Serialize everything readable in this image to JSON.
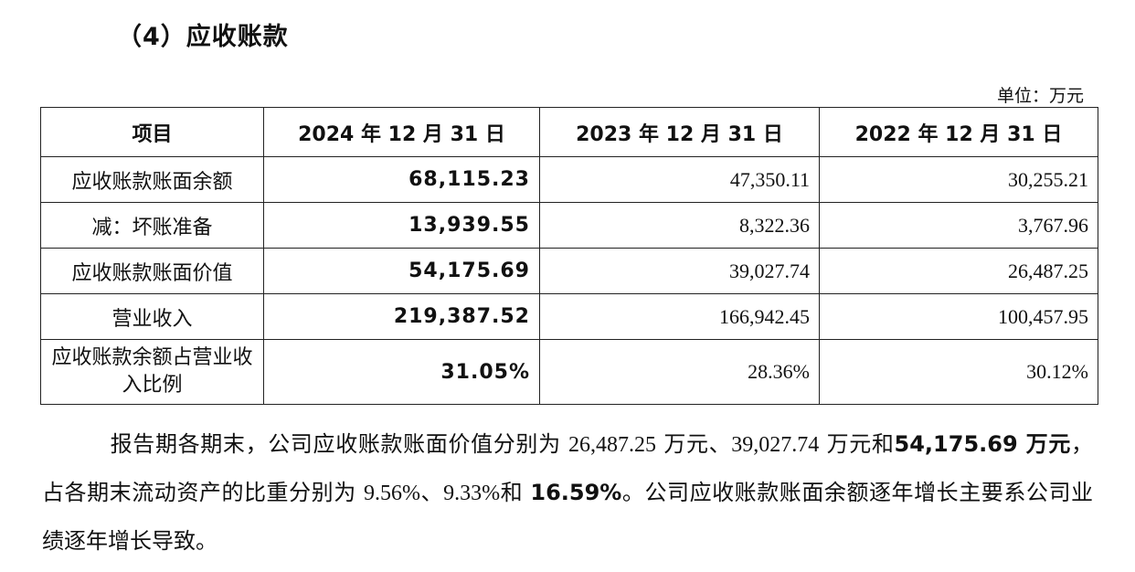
{
  "section_title": "（4）应收账款",
  "unit_label": "单位：万元",
  "table": {
    "headers": [
      "项目",
      "2024 年 12 月 31 日",
      "2023 年 12 月 31 日",
      "2022 年 12 月 31 日"
    ],
    "rows": [
      {
        "label": "应收账款账面余额",
        "v2024": "68,115.23",
        "v2023": "47,350.11",
        "v2022": "30,255.21"
      },
      {
        "label": "减：坏账准备",
        "v2024": "13,939.55",
        "v2023": "8,322.36",
        "v2022": "3,767.96"
      },
      {
        "label": "应收账款账面价值",
        "v2024": "54,175.69",
        "v2023": "39,027.74",
        "v2022": "26,487.25"
      },
      {
        "label": "营业收入",
        "v2024": "219,387.52",
        "v2023": "166,942.45",
        "v2022": "100,457.95"
      },
      {
        "label": "应收账款余额占营业收入比例",
        "v2024": "31.05%",
        "v2023": "28.36%",
        "v2022": "30.12%"
      }
    ]
  },
  "paragraph": {
    "p1": "报告期各期末，公司应收账款账面价值分别为 ",
    "n1": "26,487.25",
    "p2": " 万元、",
    "n2": "39,027.74",
    "p3": " 万元和",
    "b1": "54,175.69 万元",
    "p4": "，占各期末流动资产的比重分别为 ",
    "n3": "9.56%",
    "p5": "、",
    "n4": "9.33%",
    "p6": "和 ",
    "b2": "16.59%",
    "p7": "。公司应收账款账面余额逐年增长主要系公司业绩逐年增长导致。"
  }
}
